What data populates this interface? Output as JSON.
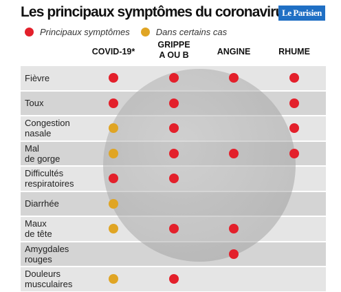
{
  "header": {
    "title": "Les principaux symptômes du coronavirus",
    "logo": "Le Parisien"
  },
  "legend": [
    {
      "key": "main",
      "label": "Principaux symptômes",
      "color": "#e3202b"
    },
    {
      "key": "some",
      "label": "Dans certains cas",
      "color": "#e0a524"
    }
  ],
  "table": {
    "columns": [
      "COVID-19*",
      "GRIPPE\nA OU B",
      "ANGINE",
      "RHUME"
    ],
    "rows": [
      {
        "label": "Fièvre",
        "cells": [
          "main",
          "main",
          "main",
          "main"
        ]
      },
      {
        "label": "Toux",
        "cells": [
          "main",
          "main",
          null,
          "main"
        ]
      },
      {
        "label": "Congestion\nnasale",
        "cells": [
          "some",
          "main",
          null,
          "main"
        ]
      },
      {
        "label": "Mal\nde gorge",
        "cells": [
          "some",
          "main",
          "main",
          "main"
        ]
      },
      {
        "label": "Difficultés\nrespiratoires",
        "cells": [
          "main",
          "main",
          null,
          null
        ]
      },
      {
        "label": "Diarrhée",
        "cells": [
          "some",
          null,
          null,
          null
        ]
      },
      {
        "label": "Maux\nde tête",
        "cells": [
          "some",
          "main",
          "main",
          null
        ]
      },
      {
        "label": "Amygdales\nrouges",
        "cells": [
          null,
          null,
          "main",
          null
        ]
      },
      {
        "label": "Douleurs\nmusculaires",
        "cells": [
          "some",
          "main",
          null,
          null
        ]
      }
    ]
  }
}
